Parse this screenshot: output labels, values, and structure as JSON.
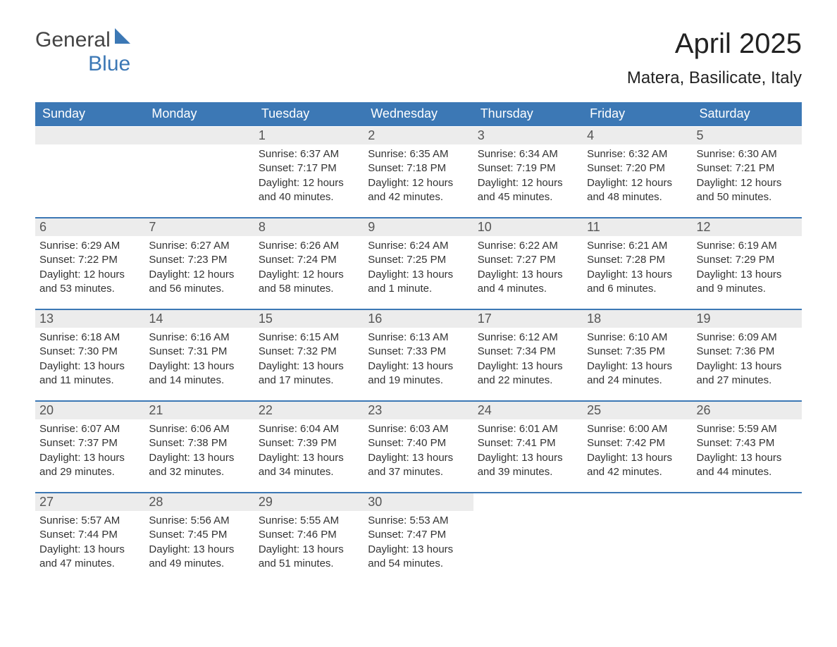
{
  "logo": {
    "general": "General",
    "blue": "Blue",
    "accent_color": "#3c78b5"
  },
  "header": {
    "month_title": "April 2025",
    "location": "Matera, Basilicate, Italy"
  },
  "colors": {
    "header_bg": "#3c78b5",
    "header_text": "#ffffff",
    "day_number_bg": "#ececec",
    "row_border": "#3c78b5",
    "body_text": "#333333",
    "background": "#ffffff"
  },
  "layout": {
    "columns": 7,
    "rows": 5,
    "cell_fontsize": 15,
    "daynum_fontsize": 18,
    "header_fontsize": 18,
    "title_fontsize": 40,
    "location_fontsize": 24
  },
  "day_headers": [
    "Sunday",
    "Monday",
    "Tuesday",
    "Wednesday",
    "Thursday",
    "Friday",
    "Saturday"
  ],
  "weeks": [
    [
      null,
      null,
      {
        "n": "1",
        "sunrise": "Sunrise: 6:37 AM",
        "sunset": "Sunset: 7:17 PM",
        "daylight": "Daylight: 12 hours and 40 minutes."
      },
      {
        "n": "2",
        "sunrise": "Sunrise: 6:35 AM",
        "sunset": "Sunset: 7:18 PM",
        "daylight": "Daylight: 12 hours and 42 minutes."
      },
      {
        "n": "3",
        "sunrise": "Sunrise: 6:34 AM",
        "sunset": "Sunset: 7:19 PM",
        "daylight": "Daylight: 12 hours and 45 minutes."
      },
      {
        "n": "4",
        "sunrise": "Sunrise: 6:32 AM",
        "sunset": "Sunset: 7:20 PM",
        "daylight": "Daylight: 12 hours and 48 minutes."
      },
      {
        "n": "5",
        "sunrise": "Sunrise: 6:30 AM",
        "sunset": "Sunset: 7:21 PM",
        "daylight": "Daylight: 12 hours and 50 minutes."
      }
    ],
    [
      {
        "n": "6",
        "sunrise": "Sunrise: 6:29 AM",
        "sunset": "Sunset: 7:22 PM",
        "daylight": "Daylight: 12 hours and 53 minutes."
      },
      {
        "n": "7",
        "sunrise": "Sunrise: 6:27 AM",
        "sunset": "Sunset: 7:23 PM",
        "daylight": "Daylight: 12 hours and 56 minutes."
      },
      {
        "n": "8",
        "sunrise": "Sunrise: 6:26 AM",
        "sunset": "Sunset: 7:24 PM",
        "daylight": "Daylight: 12 hours and 58 minutes."
      },
      {
        "n": "9",
        "sunrise": "Sunrise: 6:24 AM",
        "sunset": "Sunset: 7:25 PM",
        "daylight": "Daylight: 13 hours and 1 minute."
      },
      {
        "n": "10",
        "sunrise": "Sunrise: 6:22 AM",
        "sunset": "Sunset: 7:27 PM",
        "daylight": "Daylight: 13 hours and 4 minutes."
      },
      {
        "n": "11",
        "sunrise": "Sunrise: 6:21 AM",
        "sunset": "Sunset: 7:28 PM",
        "daylight": "Daylight: 13 hours and 6 minutes."
      },
      {
        "n": "12",
        "sunrise": "Sunrise: 6:19 AM",
        "sunset": "Sunset: 7:29 PM",
        "daylight": "Daylight: 13 hours and 9 minutes."
      }
    ],
    [
      {
        "n": "13",
        "sunrise": "Sunrise: 6:18 AM",
        "sunset": "Sunset: 7:30 PM",
        "daylight": "Daylight: 13 hours and 11 minutes."
      },
      {
        "n": "14",
        "sunrise": "Sunrise: 6:16 AM",
        "sunset": "Sunset: 7:31 PM",
        "daylight": "Daylight: 13 hours and 14 minutes."
      },
      {
        "n": "15",
        "sunrise": "Sunrise: 6:15 AM",
        "sunset": "Sunset: 7:32 PM",
        "daylight": "Daylight: 13 hours and 17 minutes."
      },
      {
        "n": "16",
        "sunrise": "Sunrise: 6:13 AM",
        "sunset": "Sunset: 7:33 PM",
        "daylight": "Daylight: 13 hours and 19 minutes."
      },
      {
        "n": "17",
        "sunrise": "Sunrise: 6:12 AM",
        "sunset": "Sunset: 7:34 PM",
        "daylight": "Daylight: 13 hours and 22 minutes."
      },
      {
        "n": "18",
        "sunrise": "Sunrise: 6:10 AM",
        "sunset": "Sunset: 7:35 PM",
        "daylight": "Daylight: 13 hours and 24 minutes."
      },
      {
        "n": "19",
        "sunrise": "Sunrise: 6:09 AM",
        "sunset": "Sunset: 7:36 PM",
        "daylight": "Daylight: 13 hours and 27 minutes."
      }
    ],
    [
      {
        "n": "20",
        "sunrise": "Sunrise: 6:07 AM",
        "sunset": "Sunset: 7:37 PM",
        "daylight": "Daylight: 13 hours and 29 minutes."
      },
      {
        "n": "21",
        "sunrise": "Sunrise: 6:06 AM",
        "sunset": "Sunset: 7:38 PM",
        "daylight": "Daylight: 13 hours and 32 minutes."
      },
      {
        "n": "22",
        "sunrise": "Sunrise: 6:04 AM",
        "sunset": "Sunset: 7:39 PM",
        "daylight": "Daylight: 13 hours and 34 minutes."
      },
      {
        "n": "23",
        "sunrise": "Sunrise: 6:03 AM",
        "sunset": "Sunset: 7:40 PM",
        "daylight": "Daylight: 13 hours and 37 minutes."
      },
      {
        "n": "24",
        "sunrise": "Sunrise: 6:01 AM",
        "sunset": "Sunset: 7:41 PM",
        "daylight": "Daylight: 13 hours and 39 minutes."
      },
      {
        "n": "25",
        "sunrise": "Sunrise: 6:00 AM",
        "sunset": "Sunset: 7:42 PM",
        "daylight": "Daylight: 13 hours and 42 minutes."
      },
      {
        "n": "26",
        "sunrise": "Sunrise: 5:59 AM",
        "sunset": "Sunset: 7:43 PM",
        "daylight": "Daylight: 13 hours and 44 minutes."
      }
    ],
    [
      {
        "n": "27",
        "sunrise": "Sunrise: 5:57 AM",
        "sunset": "Sunset: 7:44 PM",
        "daylight": "Daylight: 13 hours and 47 minutes."
      },
      {
        "n": "28",
        "sunrise": "Sunrise: 5:56 AM",
        "sunset": "Sunset: 7:45 PM",
        "daylight": "Daylight: 13 hours and 49 minutes."
      },
      {
        "n": "29",
        "sunrise": "Sunrise: 5:55 AM",
        "sunset": "Sunset: 7:46 PM",
        "daylight": "Daylight: 13 hours and 51 minutes."
      },
      {
        "n": "30",
        "sunrise": "Sunrise: 5:53 AM",
        "sunset": "Sunset: 7:47 PM",
        "daylight": "Daylight: 13 hours and 54 minutes."
      },
      null,
      null,
      null
    ]
  ]
}
